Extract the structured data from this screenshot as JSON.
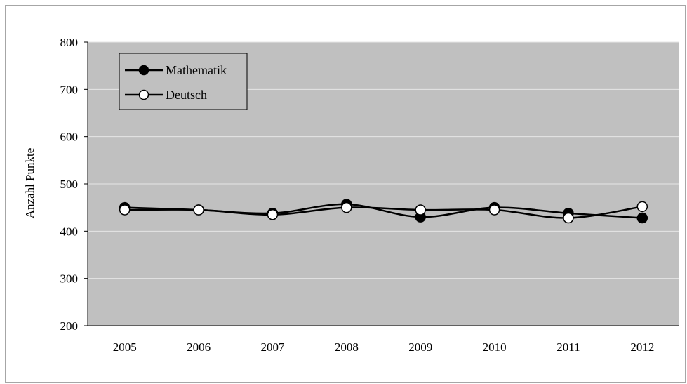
{
  "chart_data": {
    "type": "line",
    "title": "",
    "xlabel": "",
    "ylabel": "Anzahl Punkte",
    "categories": [
      "2005",
      "2006",
      "2007",
      "2008",
      "2009",
      "2010",
      "2011",
      "2012"
    ],
    "series": [
      {
        "name": "Mathematik",
        "values": [
          450,
          445,
          438,
          457,
          430,
          450,
          438,
          428
        ],
        "marker": "filled-circle",
        "color": "#000000"
      },
      {
        "name": "Deutsch",
        "values": [
          445,
          445,
          435,
          450,
          445,
          445,
          428,
          452
        ],
        "marker": "open-circle",
        "color": "#000000"
      }
    ],
    "ylim": [
      200,
      800
    ],
    "yticks": [
      "200",
      "300",
      "400",
      "500",
      "600",
      "700",
      "800"
    ],
    "grid": true,
    "smooth": true,
    "legend_position": "top-left",
    "plot_background": "#c0c0c0",
    "gridline_color": "#e6e6e6"
  }
}
